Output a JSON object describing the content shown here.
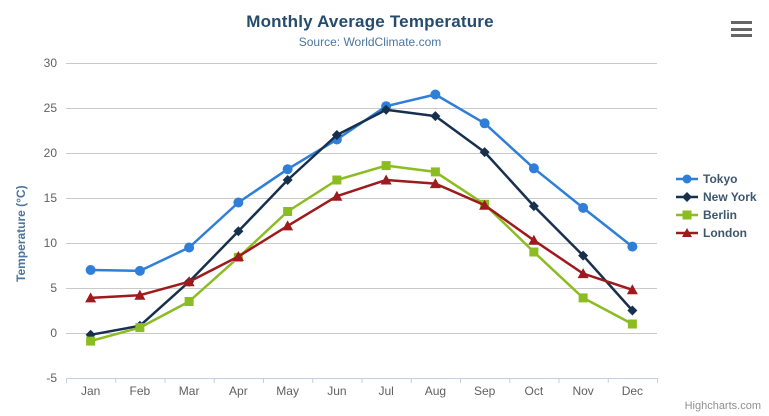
{
  "header": {
    "title": "Monthly Average Temperature",
    "subtitle": "Source: WorldClimate.com",
    "menu_icon": "hamburger-menu-icon"
  },
  "credits": {
    "label": "Highcharts.com"
  },
  "chart_data": {
    "type": "line",
    "title": "Monthly Average Temperature",
    "subtitle": "Source: WorldClimate.com",
    "categories": [
      "Jan",
      "Feb",
      "Mar",
      "Apr",
      "May",
      "Jun",
      "Jul",
      "Aug",
      "Sep",
      "Oct",
      "Nov",
      "Dec"
    ],
    "xlabel": "",
    "ylabel": "Temperature (°C)",
    "ylim": [
      -5,
      30
    ],
    "yticks": [
      -5,
      0,
      5,
      10,
      15,
      20,
      25,
      30
    ],
    "grid": true,
    "legend_position": "right-middle",
    "colors": {
      "grid": "#C9C9C9",
      "axis_line": "#C0D0E0",
      "tick_label": "#606060",
      "title": "#274b6d",
      "subtitle": "#4d759e",
      "legend_text": "#3E576F"
    },
    "series": [
      {
        "name": "Tokyo",
        "color": "#2f7ed8",
        "marker": "circle",
        "values": [
          7.0,
          6.9,
          9.5,
          14.5,
          18.2,
          21.5,
          25.2,
          26.5,
          23.3,
          18.3,
          13.9,
          9.6
        ]
      },
      {
        "name": "New York",
        "color": "#16304e",
        "marker": "diamond",
        "values": [
          -0.2,
          0.8,
          5.7,
          11.3,
          17.0,
          22.0,
          24.8,
          24.1,
          20.1,
          14.1,
          8.6,
          2.5
        ]
      },
      {
        "name": "Berlin",
        "color": "#8bbc21",
        "marker": "square",
        "values": [
          -0.9,
          0.6,
          3.5,
          8.4,
          13.5,
          17.0,
          18.6,
          17.9,
          14.3,
          9.0,
          3.9,
          1.0
        ]
      },
      {
        "name": "London",
        "color": "#9e1a1c",
        "marker": "triangle",
        "values": [
          3.9,
          4.2,
          5.7,
          8.5,
          11.9,
          15.2,
          17.0,
          16.6,
          14.2,
          10.3,
          6.6,
          4.8
        ]
      }
    ]
  }
}
